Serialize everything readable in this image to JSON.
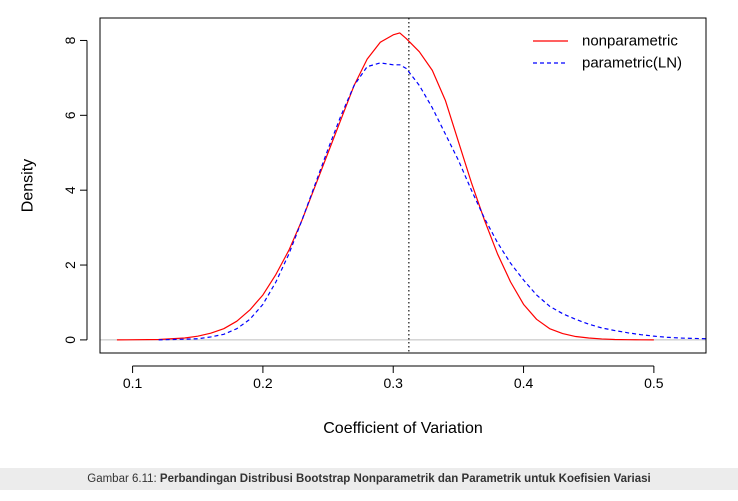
{
  "chart_data": {
    "type": "line",
    "title": "",
    "xlabel": "Coefficient of Variation",
    "ylabel": "Density",
    "xlim": [
      0.075,
      0.54
    ],
    "ylim": [
      -0.35,
      8.6
    ],
    "xticks": [
      0.1,
      0.2,
      0.3,
      0.4,
      0.5
    ],
    "xtick_labels": [
      "0.1",
      "0.2",
      "0.3",
      "0.4",
      "0.5"
    ],
    "yticks": [
      0,
      2,
      4,
      6,
      8
    ],
    "ytick_labels": [
      "0",
      "2",
      "4",
      "6",
      "8"
    ],
    "grid": false,
    "legend_position": "top-right",
    "baseline": 0,
    "vline": {
      "x": 0.312,
      "style": "dotted",
      "color": "#000000"
    },
    "series": [
      {
        "name": "nonparametric",
        "color": "#ff0000",
        "linestyle": "solid",
        "x": [
          0.088,
          0.12,
          0.14,
          0.15,
          0.16,
          0.17,
          0.18,
          0.19,
          0.2,
          0.21,
          0.22,
          0.23,
          0.24,
          0.25,
          0.26,
          0.27,
          0.28,
          0.29,
          0.3,
          0.305,
          0.31,
          0.32,
          0.33,
          0.34,
          0.35,
          0.36,
          0.37,
          0.38,
          0.39,
          0.4,
          0.41,
          0.42,
          0.43,
          0.44,
          0.45,
          0.46,
          0.47,
          0.48,
          0.49,
          0.5
        ],
        "y": [
          0,
          0.01,
          0.05,
          0.1,
          0.18,
          0.3,
          0.5,
          0.8,
          1.2,
          1.75,
          2.4,
          3.2,
          4.1,
          5.0,
          5.9,
          6.8,
          7.5,
          7.95,
          8.15,
          8.2,
          8.05,
          7.7,
          7.2,
          6.4,
          5.3,
          4.2,
          3.2,
          2.3,
          1.55,
          0.95,
          0.55,
          0.3,
          0.17,
          0.09,
          0.05,
          0.025,
          0.01,
          0.005,
          0.002,
          0
        ]
      },
      {
        "name": "parametric(LN)",
        "color": "#0000ff",
        "linestyle": "dashed",
        "x": [
          0.12,
          0.15,
          0.16,
          0.17,
          0.18,
          0.19,
          0.2,
          0.21,
          0.22,
          0.23,
          0.24,
          0.25,
          0.26,
          0.27,
          0.28,
          0.29,
          0.3,
          0.305,
          0.31,
          0.32,
          0.33,
          0.34,
          0.35,
          0.36,
          0.37,
          0.38,
          0.39,
          0.4,
          0.41,
          0.42,
          0.43,
          0.44,
          0.45,
          0.46,
          0.47,
          0.48,
          0.49,
          0.5,
          0.51,
          0.52,
          0.54
        ],
        "y": [
          0,
          0.03,
          0.08,
          0.15,
          0.3,
          0.55,
          0.95,
          1.55,
          2.3,
          3.2,
          4.15,
          5.1,
          6.0,
          6.8,
          7.3,
          7.4,
          7.35,
          7.35,
          7.25,
          6.8,
          6.2,
          5.5,
          4.8,
          4.0,
          3.25,
          2.6,
          2.05,
          1.6,
          1.2,
          0.9,
          0.7,
          0.55,
          0.42,
          0.32,
          0.25,
          0.19,
          0.14,
          0.1,
          0.07,
          0.05,
          0.03
        ]
      }
    ]
  },
  "caption": {
    "label": "Gambar 6.11: ",
    "text": "Perbandingan Distribusi Bootstrap Nonparametrik dan Parametrik untuk Koefisien Variasi"
  }
}
